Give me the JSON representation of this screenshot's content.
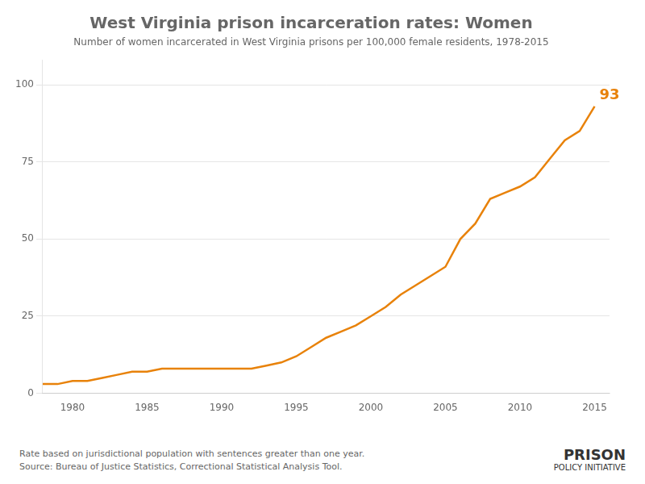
{
  "chart_data": {
    "type": "line",
    "title": "West Virginia prison incarceration rates: Women",
    "subtitle": "Number of women incarcerated in West Virginia prisons per 100,000 female residents, 1978-2015",
    "x": [
      1978,
      1979,
      1980,
      1981,
      1982,
      1983,
      1984,
      1985,
      1986,
      1987,
      1988,
      1989,
      1990,
      1991,
      1992,
      1993,
      1994,
      1995,
      1996,
      1997,
      1998,
      1999,
      2000,
      2001,
      2002,
      2003,
      2004,
      2005,
      2006,
      2007,
      2008,
      2009,
      2010,
      2011,
      2012,
      2013,
      2014,
      2015
    ],
    "values": [
      3,
      3,
      4,
      4,
      5,
      6,
      7,
      7,
      8,
      8,
      8,
      8,
      8,
      8,
      8,
      9,
      10,
      12,
      15,
      18,
      20,
      22,
      25,
      28,
      32,
      35,
      38,
      41,
      50,
      55,
      63,
      65,
      67,
      70,
      76,
      82,
      85,
      93
    ],
    "color": "#e8820a",
    "xlim": [
      1978,
      2016
    ],
    "xticks": [
      1980,
      1985,
      1990,
      1995,
      2000,
      2005,
      2010,
      2015
    ],
    "ylim": [
      0,
      108
    ],
    "yticks": [
      0,
      25,
      50,
      75,
      100
    ],
    "grid": "y",
    "annotations": [
      {
        "text": "93",
        "x": 2015,
        "y": 93,
        "color": "#e8820a"
      }
    ],
    "footnotes": [
      "Rate based on jurisdictional population with sentences greater than one year.",
      "Source: Bureau of Justice Statistics, Correctional Statistical Analysis Tool."
    ],
    "logo": [
      "PRISON",
      "POLICY INITIATIVE"
    ]
  }
}
